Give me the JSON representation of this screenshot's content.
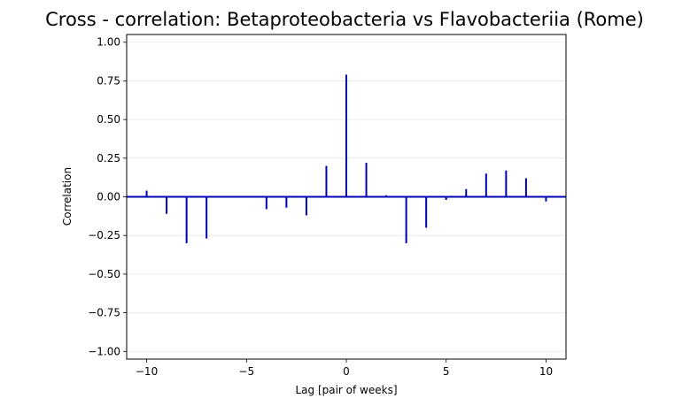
{
  "chart_data": {
    "type": "bar",
    "style": "stem",
    "title": "Cross - correlation: Betaproteobacteria vs Flavobacteriia (Rome)",
    "xlabel": "Lag [pair of weeks]",
    "ylabel": "Correlation",
    "xlim": [
      -11,
      11
    ],
    "ylim": [
      -1.05,
      1.05
    ],
    "xticks": [
      -10,
      -5,
      0,
      5,
      10
    ],
    "xtick_labels": [
      "−10",
      "−5",
      "0",
      "5",
      "10"
    ],
    "yticks": [
      -1.0,
      -0.75,
      -0.5,
      -0.25,
      0.0,
      0.25,
      0.5,
      0.75,
      1.0
    ],
    "ytick_labels": [
      "−1.00",
      "−0.75",
      "−0.50",
      "−0.25",
      "0.00",
      "0.25",
      "0.50",
      "0.75",
      "1.00"
    ],
    "grid": "horizontal",
    "series": [
      {
        "color": "#0000b3",
        "x": [
          -10,
          -9,
          -8,
          -7,
          -6,
          -5,
          -4,
          -3,
          -2,
          -1,
          0,
          1,
          2,
          3,
          4,
          5,
          6,
          7,
          8,
          9,
          10
        ],
        "values": [
          0.04,
          -0.11,
          -0.3,
          -0.27,
          0.0,
          0.0,
          -0.08,
          -0.07,
          -0.12,
          0.2,
          0.79,
          0.22,
          0.01,
          -0.3,
          -0.2,
          -0.02,
          0.05,
          0.15,
          0.17,
          0.12,
          -0.03
        ]
      }
    ],
    "baseline": 0.0
  }
}
